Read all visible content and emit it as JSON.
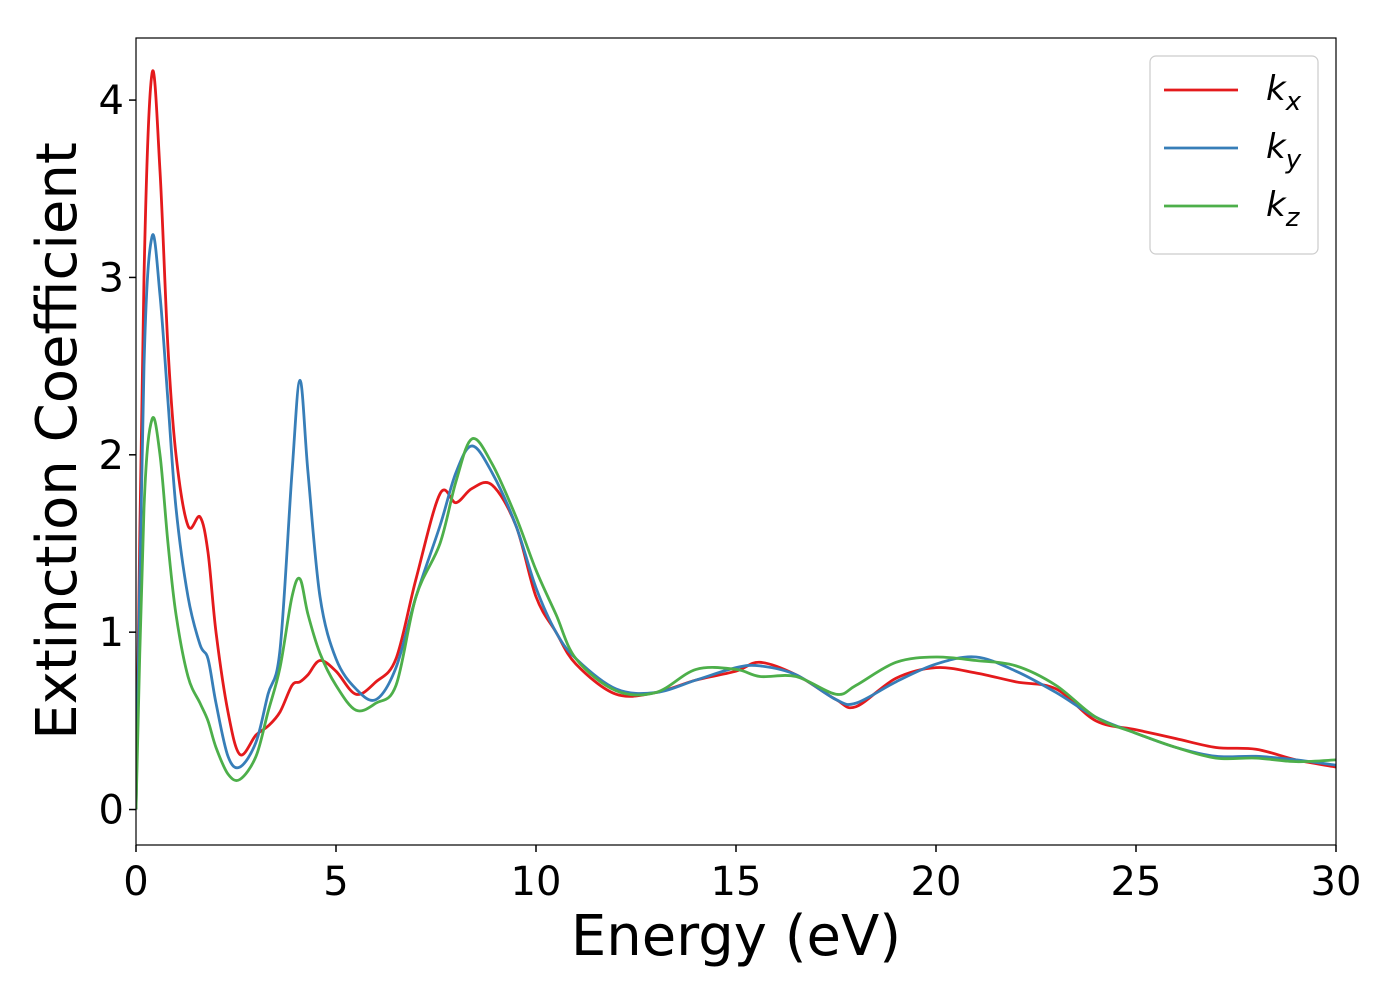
{
  "chart_data": {
    "type": "line",
    "x_label": "Energy (eV)",
    "y_label": "Extinction Coefficient",
    "x": [
      0,
      0.2,
      0.4,
      0.6,
      0.8,
      1.0,
      1.3,
      1.6,
      1.8,
      2.0,
      2.3,
      2.6,
      3.0,
      3.3,
      3.6,
      3.9,
      4.1,
      4.3,
      4.6,
      5.0,
      5.5,
      6.0,
      6.5,
      7.0,
      7.6,
      8.0,
      8.4,
      8.9,
      9.5,
      10.0,
      10.5,
      11.0,
      12.0,
      13.0,
      14.0,
      15.0,
      15.6,
      16.5,
      17.5,
      18.0,
      19.0,
      20.0,
      21.0,
      22.0,
      23.0,
      24.0,
      25.0,
      26.0,
      27.0,
      28.0,
      29.0,
      30.0
    ],
    "series": [
      {
        "name": "k_x",
        "color": "#e41a1c",
        "values": [
          0,
          3.0,
          4.15,
          3.6,
          2.6,
          2.0,
          1.6,
          1.65,
          1.45,
          1.0,
          0.55,
          0.31,
          0.42,
          0.47,
          0.55,
          0.7,
          0.72,
          0.76,
          0.84,
          0.78,
          0.65,
          0.72,
          0.85,
          1.3,
          1.78,
          1.73,
          1.81,
          1.83,
          1.6,
          1.2,
          1.0,
          0.82,
          0.65,
          0.66,
          0.73,
          0.78,
          0.83,
          0.76,
          0.62,
          0.58,
          0.74,
          0.8,
          0.77,
          0.72,
          0.68,
          0.5,
          0.45,
          0.4,
          0.35,
          0.34,
          0.28,
          0.24
        ]
      },
      {
        "name": "k_y",
        "color": "#377eb8",
        "values": [
          0,
          2.5,
          3.23,
          2.9,
          2.3,
          1.7,
          1.2,
          0.93,
          0.85,
          0.6,
          0.3,
          0.24,
          0.38,
          0.65,
          0.9,
          1.9,
          2.42,
          1.9,
          1.2,
          0.85,
          0.68,
          0.62,
          0.8,
          1.2,
          1.6,
          1.9,
          2.05,
          1.9,
          1.6,
          1.25,
          1.0,
          0.85,
          0.68,
          0.66,
          0.73,
          0.8,
          0.81,
          0.76,
          0.62,
          0.6,
          0.72,
          0.82,
          0.86,
          0.78,
          0.66,
          0.52,
          0.43,
          0.35,
          0.3,
          0.3,
          0.28,
          0.25
        ]
      },
      {
        "name": "k_z",
        "color": "#4daf4a",
        "values": [
          0,
          1.7,
          2.2,
          2.0,
          1.5,
          1.1,
          0.75,
          0.6,
          0.5,
          0.35,
          0.2,
          0.17,
          0.3,
          0.55,
          0.8,
          1.2,
          1.3,
          1.1,
          0.88,
          0.7,
          0.56,
          0.6,
          0.7,
          1.2,
          1.5,
          1.85,
          2.09,
          1.95,
          1.65,
          1.35,
          1.1,
          0.85,
          0.67,
          0.66,
          0.79,
          0.79,
          0.75,
          0.75,
          0.65,
          0.7,
          0.83,
          0.86,
          0.84,
          0.81,
          0.7,
          0.52,
          0.43,
          0.35,
          0.29,
          0.29,
          0.27,
          0.28
        ]
      }
    ],
    "xlim": [
      0,
      30
    ],
    "ylim": [
      -0.2,
      4.35
    ],
    "xticks": [
      0,
      5,
      10,
      15,
      20,
      25,
      30
    ],
    "yticks": [
      0,
      1,
      2,
      3,
      4
    ],
    "legend": "upper right",
    "grid": false
  }
}
